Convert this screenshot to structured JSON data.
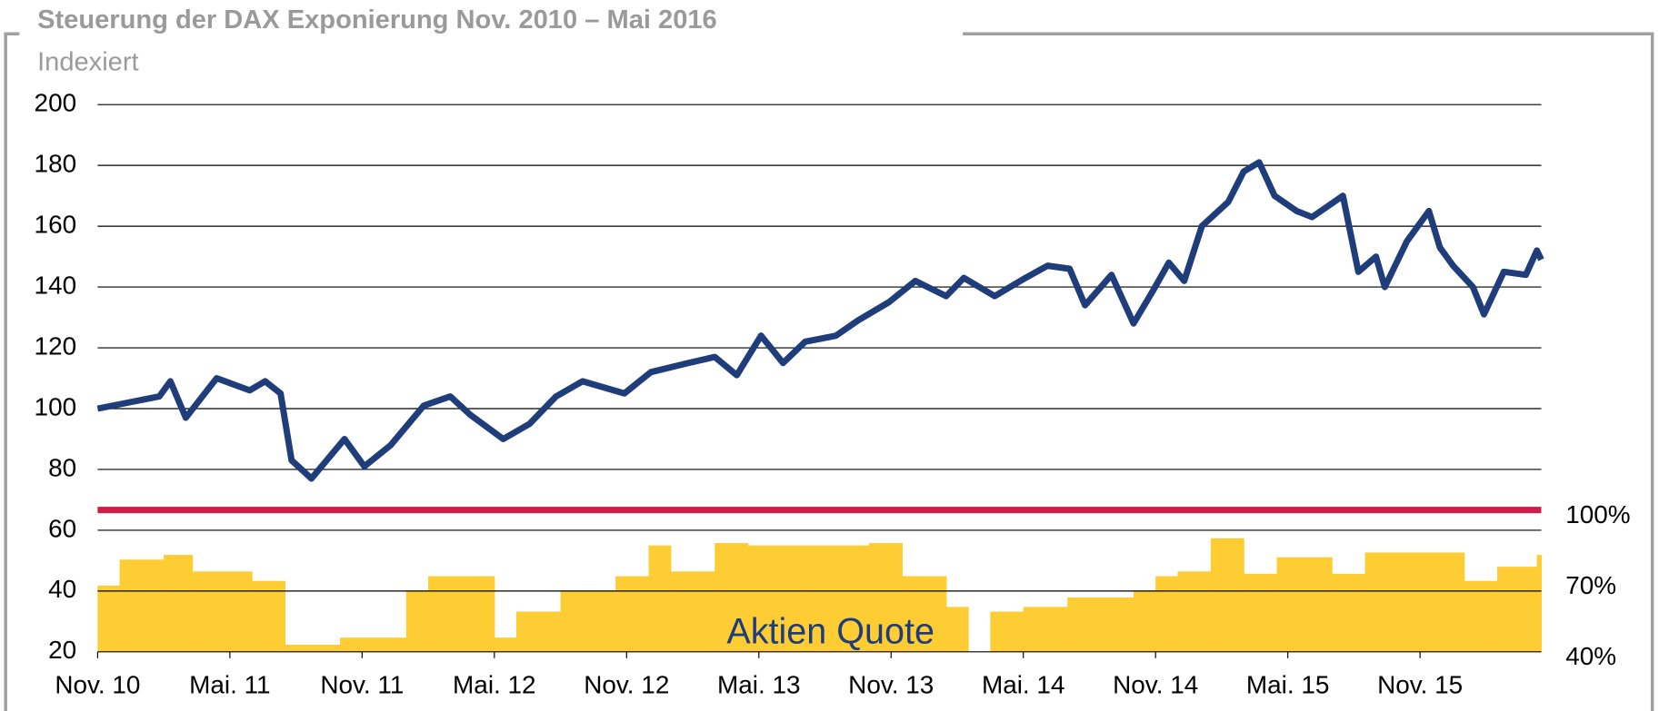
{
  "chart_data": {
    "type": "line",
    "title": "Steuerung der DAX Exponierung Nov. 2010 –  Mai 2016",
    "subtitle": "Indexiert",
    "annotation": "Aktien Quote",
    "xlim": [
      0,
      65.5
    ],
    "xticks": [
      {
        "value": 0,
        "label": "Nov. 10"
      },
      {
        "value": 6,
        "label": "Mai. 11"
      },
      {
        "value": 12,
        "label": "Nov. 11"
      },
      {
        "value": 18,
        "label": "Mai. 12"
      },
      {
        "value": 24,
        "label": "Nov. 12"
      },
      {
        "value": 30,
        "label": "Mai. 13"
      },
      {
        "value": 36,
        "label": "Nov. 13"
      },
      {
        "value": 42,
        "label": "Mai. 14"
      },
      {
        "value": 48,
        "label": "Nov. 14"
      },
      {
        "value": 54,
        "label": "Mai. 15"
      },
      {
        "value": 60,
        "label": "Nov. 15"
      }
    ],
    "ylim": [
      20,
      200
    ],
    "yticks": [
      20,
      40,
      60,
      80,
      100,
      120,
      140,
      160,
      180,
      200
    ],
    "y2lim": [
      40,
      271.43
    ],
    "y2ticks": [
      {
        "value": 40,
        "label": "40%"
      },
      {
        "value": 70,
        "label": "70%"
      },
      {
        "value": 100,
        "label": "100%"
      }
    ],
    "grid": true,
    "reference_line": {
      "axis": "y2",
      "value": 100,
      "color": "#d41a46"
    },
    "series": [
      {
        "color": "#1f3d7a",
        "x": [
          0,
          2.8,
          3.3,
          4,
          5.4,
          6.9,
          7.6,
          8.3,
          8.8,
          9.7,
          11.2,
          12.1,
          13.3,
          14.8,
          16,
          16.9,
          18.4,
          19.6,
          20.8,
          22,
          23.9,
          25.1,
          26.8,
          28,
          29,
          30.1,
          31.1,
          32.1,
          33.5,
          34.5,
          35.9,
          37.1,
          38.5,
          39.3,
          40.7,
          42.1,
          43.1,
          44.1,
          44.8,
          46,
          47,
          47.9,
          48.6,
          49.3,
          50.1,
          51.3,
          52,
          52.7,
          53.4,
          54.4,
          55.1,
          56.5,
          57.2,
          58,
          58.4,
          59.4,
          60.4,
          60.9,
          61.5,
          62.4,
          62.9,
          63.8,
          64.8,
          65.3,
          65.5
        ],
        "values": [
          100,
          104,
          109,
          97,
          110,
          106,
          109,
          105,
          83,
          77,
          90,
          81,
          88,
          101,
          104,
          98,
          90,
          95,
          104,
          109,
          105,
          112,
          115,
          117,
          111,
          124,
          115,
          122,
          124,
          129,
          135,
          142,
          137,
          143,
          137,
          143,
          147,
          146,
          134,
          144,
          128,
          139,
          148,
          142,
          160,
          168,
          178,
          181,
          170,
          165,
          163,
          170,
          145,
          150,
          140,
          155,
          165,
          153,
          147,
          140,
          131,
          145,
          144,
          152,
          149
        ]
      },
      {
        "type": "step-area",
        "axis": "y2",
        "color": "#fecc33",
        "x": [
          0,
          1,
          3,
          4.3,
          7,
          8.5,
          11,
          14,
          15,
          18,
          19,
          21,
          23.5,
          25,
          26,
          28,
          29.5,
          32,
          35,
          36.5,
          38.5,
          39.5,
          40.5,
          42,
          44,
          47,
          48,
          49,
          50.5,
          52,
          53.5,
          56,
          57.5,
          62,
          63.5,
          65.3
        ],
        "values": [
          68,
          79,
          81,
          74,
          70,
          43,
          46,
          66,
          72,
          46,
          57,
          66,
          72,
          85,
          74,
          86,
          85,
          85,
          86,
          72,
          59,
          40,
          57,
          59,
          63,
          66,
          72,
          74,
          88,
          73,
          80,
          73,
          82,
          70,
          76,
          81
        ]
      }
    ]
  }
}
